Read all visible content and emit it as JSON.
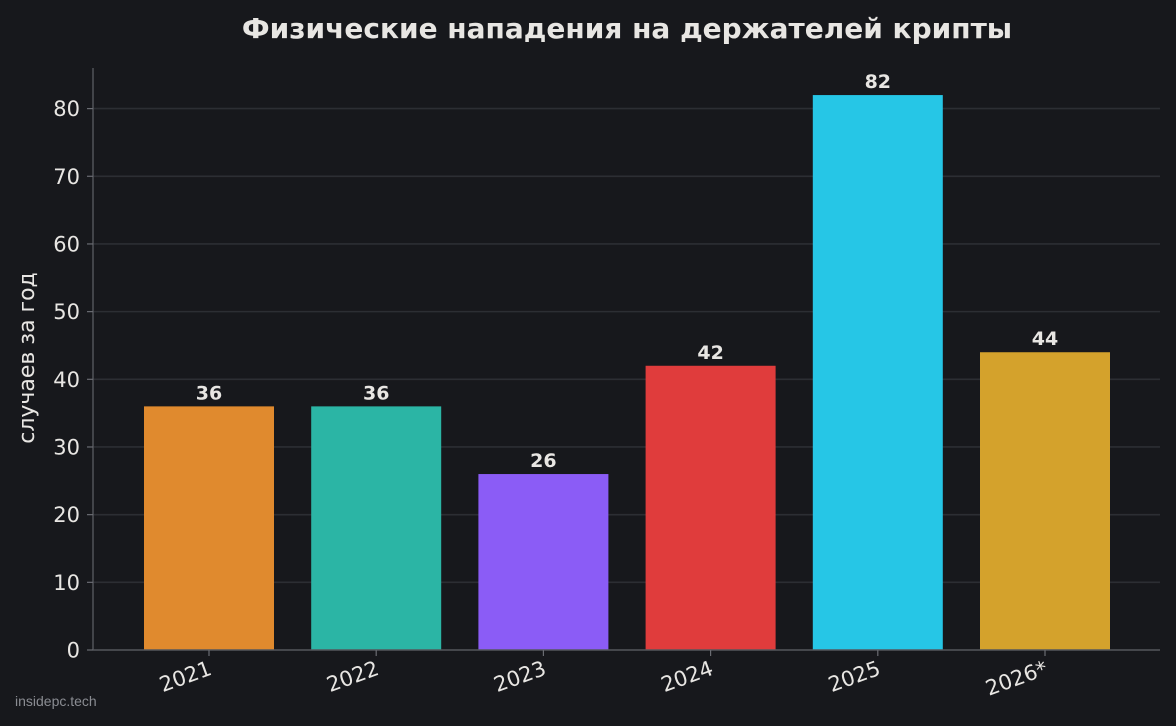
{
  "chart_data": {
    "type": "bar",
    "title": "Физические нападения на держателей крипты",
    "ylabel": "случаев за год",
    "xlabel": "",
    "categories": [
      "2021",
      "2022",
      "2023",
      "2024",
      "2025",
      "2026*"
    ],
    "values": [
      36,
      36,
      26,
      42,
      82,
      44
    ],
    "value_labels": [
      "36",
      "36",
      "26",
      "42",
      "82",
      "44"
    ],
    "colors": [
      "#e08a2e",
      "#2bb5a5",
      "#8b5cf6",
      "#e03c3c",
      "#26c6e6",
      "#d4a22c"
    ],
    "ylim": [
      0,
      86
    ],
    "yticks": [
      0,
      10,
      20,
      30,
      40,
      50,
      60,
      70,
      80
    ],
    "ytick_labels": [
      "0",
      "10",
      "20",
      "30",
      "40",
      "50",
      "60",
      "70",
      "80"
    ],
    "grid": true,
    "background": "#17181c",
    "grid_color": "#2c2e33",
    "text_color": "#e8e6e3"
  },
  "watermark": "insidepc.tech"
}
